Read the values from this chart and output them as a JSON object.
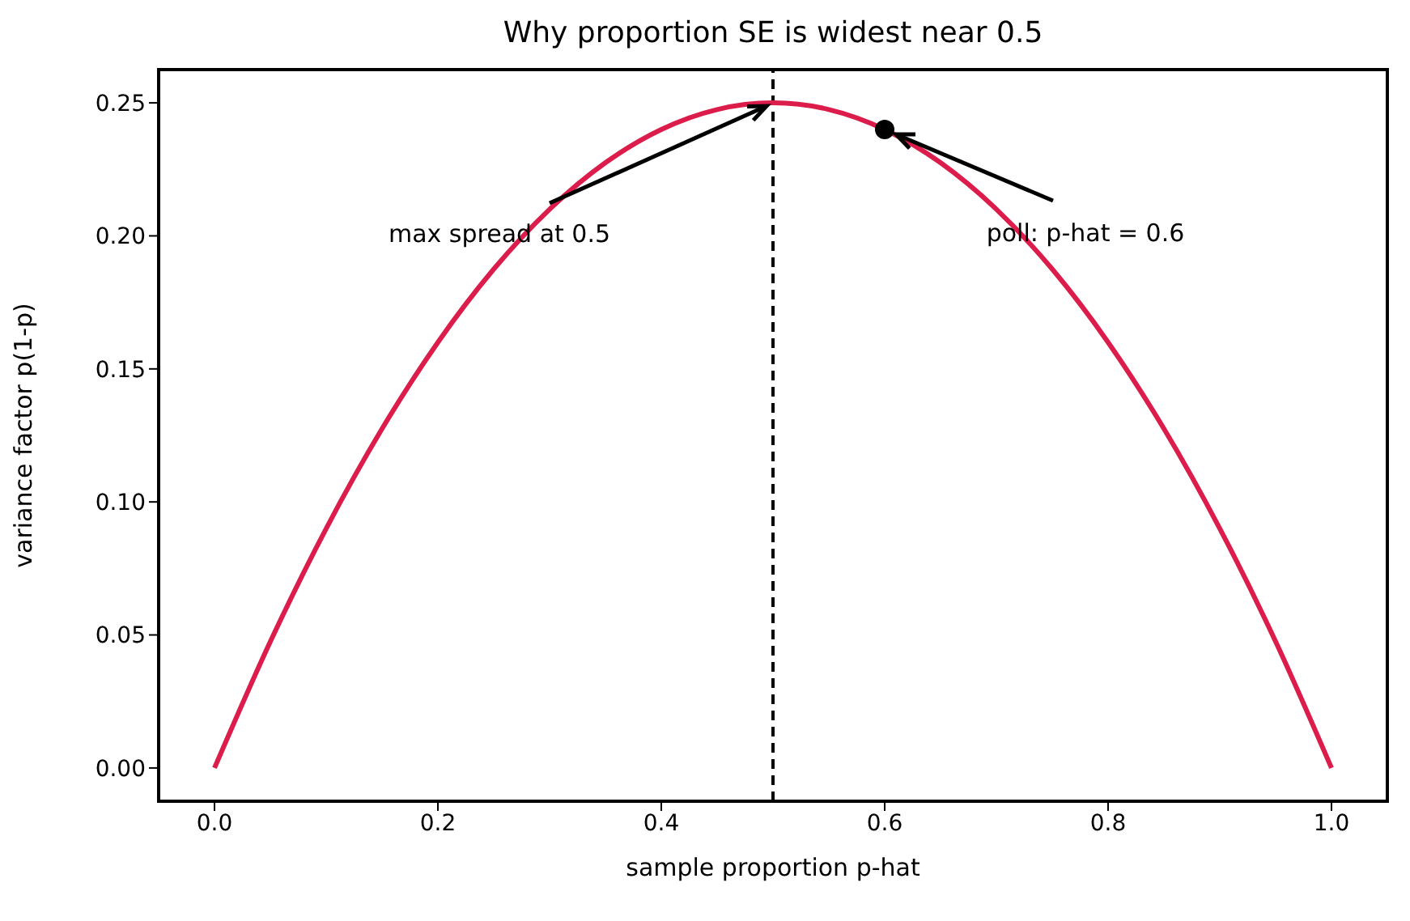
{
  "chart_data": {
    "type": "line",
    "title": "Why proportion SE is widest near 0.5",
    "xlabel": "sample proportion  p-hat",
    "ylabel": "variance factor  p(1-p)",
    "series": [
      {
        "color": "#dc1c4b",
        "x": [
          0,
          0.05,
          0.1,
          0.15,
          0.2,
          0.25,
          0.3,
          0.35,
          0.4,
          0.45,
          0.5,
          0.55,
          0.6,
          0.65,
          0.7,
          0.75,
          0.8,
          0.85,
          0.9,
          0.95,
          1
        ],
        "values": [
          0,
          0.0475,
          0.09,
          0.1275,
          0.16,
          0.1875,
          0.21,
          0.2275,
          0.24,
          0.2475,
          0.25,
          0.2475,
          0.24,
          0.2275,
          0.21,
          0.1875,
          0.16,
          0.1275,
          0.09,
          0.0475,
          0
        ]
      },
      {
        "type": "scatter",
        "color": "#000000",
        "x": [
          0.6
        ],
        "values": [
          0.24
        ]
      }
    ],
    "ref_lines": [
      {
        "axis": "x",
        "value": 0.5,
        "color": "#000000",
        "line_style": "dashed"
      }
    ],
    "annotations": [
      {
        "text": "max spread at 0.5",
        "x": 0.5,
        "y": 0.25
      },
      {
        "text": "poll: p-hat = 0.6",
        "x": 0.6,
        "y": 0.24
      }
    ],
    "xlim": [
      -0.05,
      1.05
    ],
    "ylim": [
      -0.0125,
      0.2625
    ],
    "xticks": [
      {
        "value": 0,
        "label": "0.0"
      },
      {
        "value": 0.2,
        "label": "0.2"
      },
      {
        "value": 0.4,
        "label": "0.4"
      },
      {
        "value": 0.6,
        "label": "0.6"
      },
      {
        "value": 0.8,
        "label": "0.8"
      },
      {
        "value": 1,
        "label": "1.0"
      }
    ],
    "yticks": [
      {
        "value": 0,
        "label": "0.00"
      },
      0.05,
      {
        "value": 0.1,
        "label": "0.10"
      },
      0.15,
      {
        "value": 0.2,
        "label": "0.20"
      },
      0.25
    ],
    "grid": false,
    "legend": false
  }
}
